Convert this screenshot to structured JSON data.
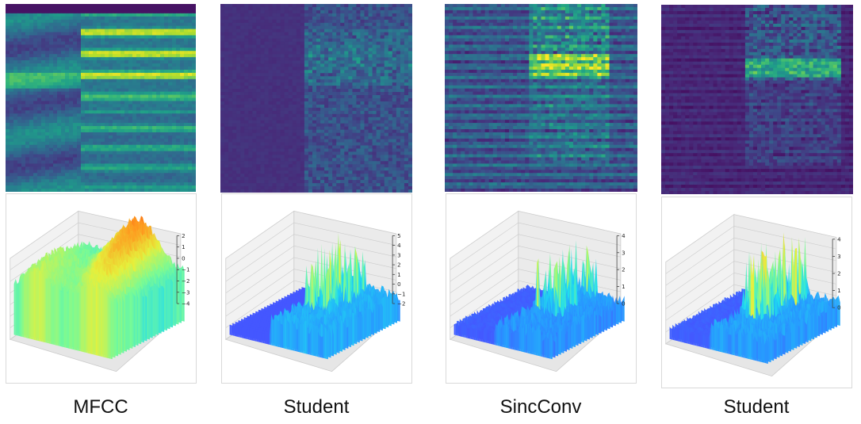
{
  "chart_data": [
    {
      "type": "heatmap",
      "panel": "spectrogram",
      "caption": "MFCC",
      "colormap": "viridis",
      "surface": {
        "type": "surface3d",
        "colormap": "jet",
        "zticks": [
          "2",
          "1",
          "0",
          "−1",
          "−2",
          "−3",
          "−4"
        ],
        "zlim": [
          -4.5,
          2.8
        ]
      }
    },
    {
      "type": "heatmap",
      "panel": "spectrogram",
      "caption": "Student",
      "colormap": "viridis",
      "surface": {
        "type": "surface3d",
        "colormap": "jet",
        "zticks": [
          "5",
          "4",
          "3",
          "2",
          "1",
          "0",
          "−1",
          "−2"
        ],
        "zlim": [
          -2.5,
          5
        ]
      }
    },
    {
      "type": "heatmap",
      "panel": "spectrogram",
      "caption": "SincConv",
      "colormap": "viridis",
      "surface": {
        "type": "surface3d",
        "colormap": "jet",
        "zticks": [
          "4",
          "3",
          "2",
          "1",
          "0"
        ],
        "zlim": [
          -0.5,
          4.3
        ]
      }
    },
    {
      "type": "heatmap",
      "panel": "spectrogram",
      "caption": "Student",
      "colormap": "viridis",
      "surface": {
        "type": "surface3d",
        "colormap": "jet",
        "zticks": [
          "4",
          "3",
          "2",
          "1",
          "0"
        ],
        "zlim": [
          -0.5,
          4.5
        ]
      }
    }
  ]
}
